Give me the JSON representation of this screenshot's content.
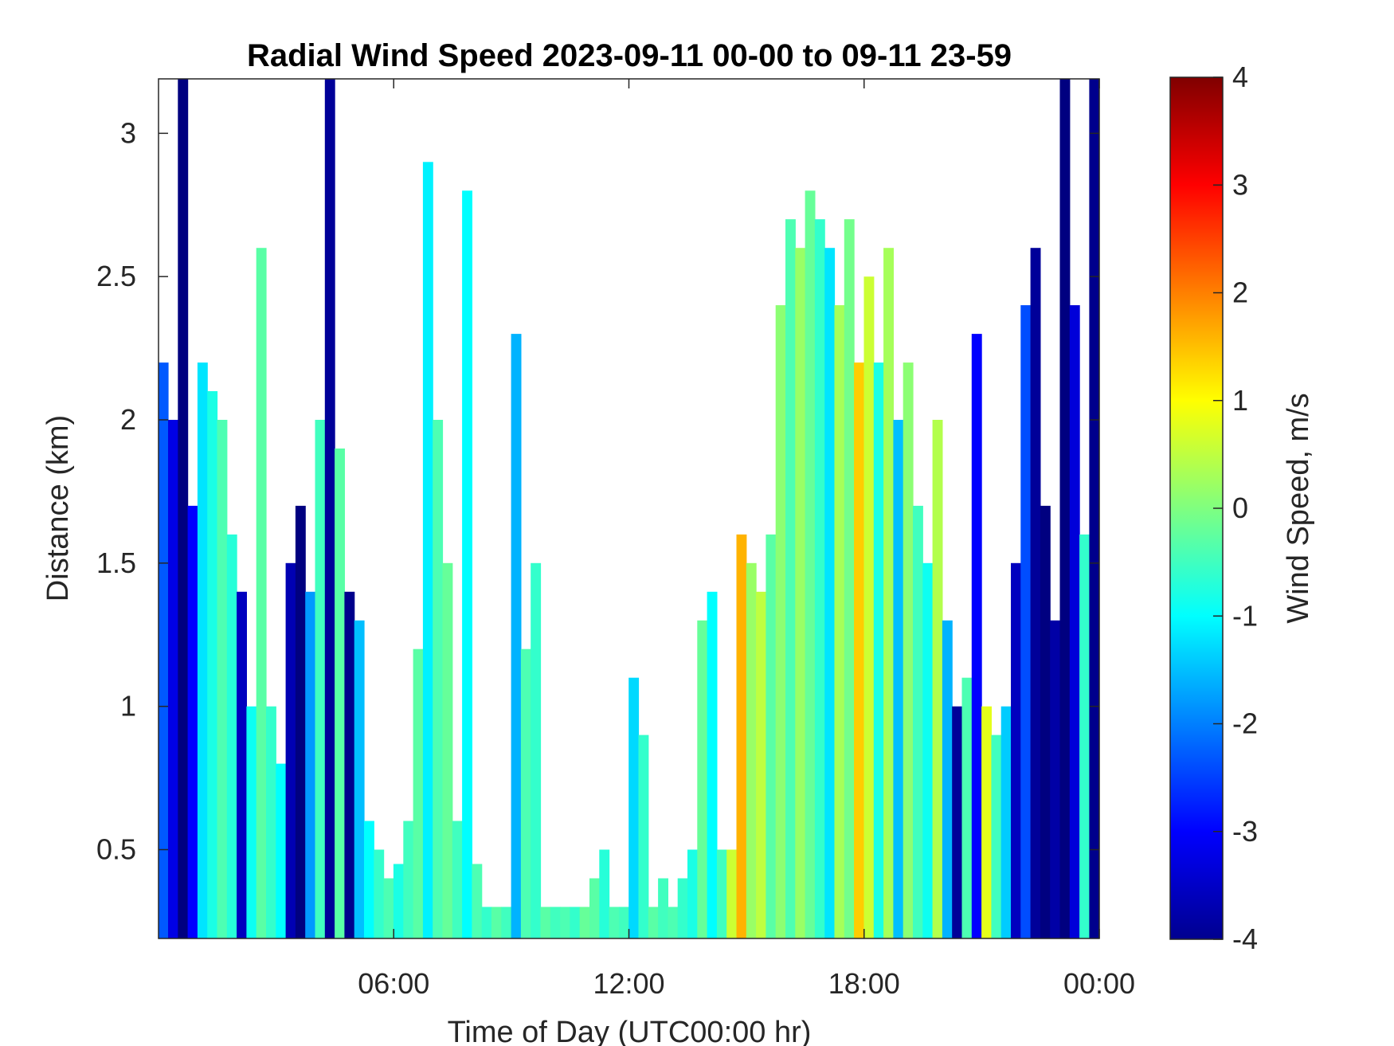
{
  "chart_data": {
    "type": "heatmap",
    "title": "Radial Wind Speed 2023-09-11 00-00 to 09-11 23-59",
    "xlabel": "Time of Day (UTC00:00 hr)",
    "ylabel": "Distance (km)",
    "xlim": [
      0,
      24
    ],
    "ylim": [
      0.19,
      3.19
    ],
    "x_ticks": [
      {
        "value": 6,
        "label": "06:00"
      },
      {
        "value": 12,
        "label": "12:00"
      },
      {
        "value": 18,
        "label": "18:00"
      },
      {
        "value": 24,
        "label": "00:00"
      }
    ],
    "y_ticks": [
      {
        "value": 0.5,
        "label": "0.5"
      },
      {
        "value": 1,
        "label": "1"
      },
      {
        "value": 1.5,
        "label": "1.5"
      },
      {
        "value": 2,
        "label": "2"
      },
      {
        "value": 2.5,
        "label": "2.5"
      },
      {
        "value": 3,
        "label": "3"
      }
    ],
    "grid": false,
    "colorbar": {
      "label": "Wind Speed, m/s",
      "colormap": "jet",
      "min": -4,
      "max": 4,
      "ticks": [
        {
          "value": 4,
          "label": "4"
        },
        {
          "value": 3,
          "label": "3"
        },
        {
          "value": 2,
          "label": "2"
        },
        {
          "value": 1,
          "label": "1"
        },
        {
          "value": 0,
          "label": "0"
        },
        {
          "value": -1,
          "label": "-1"
        },
        {
          "value": -2,
          "label": "-2"
        },
        {
          "value": -3,
          "label": "-3"
        },
        {
          "value": -4,
          "label": "-4"
        }
      ]
    },
    "columns": [
      {
        "t": 0.0,
        "top": 2.2,
        "v": -2.3
      },
      {
        "t": 0.25,
        "top": 2.0,
        "v": -3.2
      },
      {
        "t": 0.5,
        "top": 3.19,
        "v": -4.0
      },
      {
        "t": 0.75,
        "top": 1.7,
        "v": -3.0
      },
      {
        "t": 1.0,
        "top": 2.2,
        "v": -1.2
      },
      {
        "t": 1.25,
        "top": 2.1,
        "v": -0.8
      },
      {
        "t": 1.5,
        "top": 2.0,
        "v": -0.4
      },
      {
        "t": 1.75,
        "top": 1.6,
        "v": -0.7
      },
      {
        "t": 2.0,
        "top": 1.4,
        "v": -3.5
      },
      {
        "t": 2.25,
        "top": 1.0,
        "v": -0.9
      },
      {
        "t": 2.5,
        "top": 2.6,
        "v": -0.3
      },
      {
        "t": 2.75,
        "top": 1.0,
        "v": -0.6
      },
      {
        "t": 3.0,
        "top": 0.8,
        "v": -1.0
      },
      {
        "t": 3.25,
        "top": 1.5,
        "v": -3.6
      },
      {
        "t": 3.5,
        "top": 1.7,
        "v": -4.0
      },
      {
        "t": 3.75,
        "top": 1.4,
        "v": -1.8
      },
      {
        "t": 4.0,
        "top": 2.0,
        "v": -0.5
      },
      {
        "t": 4.25,
        "top": 3.19,
        "v": -3.8
      },
      {
        "t": 4.5,
        "top": 1.9,
        "v": -0.3
      },
      {
        "t": 4.75,
        "top": 1.4,
        "v": -3.9
      },
      {
        "t": 5.0,
        "top": 1.3,
        "v": -1.5
      },
      {
        "t": 5.25,
        "top": 0.6,
        "v": -1.0
      },
      {
        "t": 5.5,
        "top": 0.5,
        "v": -0.6
      },
      {
        "t": 5.75,
        "top": 0.4,
        "v": -0.4
      },
      {
        "t": 6.0,
        "top": 0.45,
        "v": -0.8
      },
      {
        "t": 6.25,
        "top": 0.6,
        "v": -0.5
      },
      {
        "t": 6.5,
        "top": 1.2,
        "v": -0.3
      },
      {
        "t": 6.75,
        "top": 2.9,
        "v": -1.1
      },
      {
        "t": 7.0,
        "top": 2.0,
        "v": -0.4
      },
      {
        "t": 7.25,
        "top": 1.5,
        "v": -0.2
      },
      {
        "t": 7.5,
        "top": 0.6,
        "v": -0.5
      },
      {
        "t": 7.75,
        "top": 2.8,
        "v": -1.0
      },
      {
        "t": 8.0,
        "top": 0.45,
        "v": -0.4
      },
      {
        "t": 8.25,
        "top": 0.3,
        "v": -0.6
      },
      {
        "t": 8.5,
        "top": 0.3,
        "v": -0.3
      },
      {
        "t": 8.75,
        "top": 0.3,
        "v": -0.5
      },
      {
        "t": 9.0,
        "top": 2.3,
        "v": -1.6
      },
      {
        "t": 9.25,
        "top": 1.2,
        "v": -0.4
      },
      {
        "t": 9.5,
        "top": 1.5,
        "v": -0.6
      },
      {
        "t": 9.75,
        "top": 0.3,
        "v": -0.3
      },
      {
        "t": 10.0,
        "top": 0.3,
        "v": -0.5
      },
      {
        "t": 10.25,
        "top": 0.3,
        "v": -0.4
      },
      {
        "t": 10.5,
        "top": 0.3,
        "v": -0.6
      },
      {
        "t": 10.75,
        "top": 0.3,
        "v": -0.2
      },
      {
        "t": 11.0,
        "top": 0.4,
        "v": -0.3
      },
      {
        "t": 11.25,
        "top": 0.5,
        "v": -0.7
      },
      {
        "t": 11.5,
        "top": 0.3,
        "v": -0.4
      },
      {
        "t": 11.75,
        "top": 0.3,
        "v": -0.5
      },
      {
        "t": 12.0,
        "top": 1.1,
        "v": -1.3
      },
      {
        "t": 12.25,
        "top": 0.9,
        "v": -0.6
      },
      {
        "t": 12.5,
        "top": 0.3,
        "v": -0.3
      },
      {
        "t": 12.75,
        "top": 0.4,
        "v": -0.5
      },
      {
        "t": 13.0,
        "top": 0.3,
        "v": -0.4
      },
      {
        "t": 13.25,
        "top": 0.4,
        "v": -0.6
      },
      {
        "t": 13.5,
        "top": 0.5,
        "v": -0.8
      },
      {
        "t": 13.75,
        "top": 1.3,
        "v": -0.2
      },
      {
        "t": 14.0,
        "top": 1.4,
        "v": -1.0
      },
      {
        "t": 14.25,
        "top": 0.5,
        "v": -0.5
      },
      {
        "t": 14.5,
        "top": 0.5,
        "v": 0.6
      },
      {
        "t": 14.75,
        "top": 1.6,
        "v": 1.6
      },
      {
        "t": 15.0,
        "top": 1.5,
        "v": 0.2
      },
      {
        "t": 15.25,
        "top": 1.4,
        "v": 0.5
      },
      {
        "t": 15.5,
        "top": 1.6,
        "v": -0.3
      },
      {
        "t": 15.75,
        "top": 2.4,
        "v": 0.1
      },
      {
        "t": 16.0,
        "top": 2.7,
        "v": -0.4
      },
      {
        "t": 16.25,
        "top": 2.6,
        "v": 0.2
      },
      {
        "t": 16.5,
        "top": 2.8,
        "v": -0.2
      },
      {
        "t": 16.75,
        "top": 2.7,
        "v": -0.6
      },
      {
        "t": 17.0,
        "top": 2.6,
        "v": -1.2
      },
      {
        "t": 17.25,
        "top": 2.4,
        "v": 0.3
      },
      {
        "t": 17.5,
        "top": 2.7,
        "v": -0.1
      },
      {
        "t": 17.75,
        "top": 2.2,
        "v": 1.4
      },
      {
        "t": 18.0,
        "top": 2.5,
        "v": 0.6
      },
      {
        "t": 18.25,
        "top": 2.2,
        "v": -0.8
      },
      {
        "t": 18.5,
        "top": 2.6,
        "v": 0.3
      },
      {
        "t": 18.75,
        "top": 2.0,
        "v": -1.5
      },
      {
        "t": 19.0,
        "top": 2.2,
        "v": 0.1
      },
      {
        "t": 19.25,
        "top": 1.7,
        "v": -0.5
      },
      {
        "t": 19.5,
        "top": 1.5,
        "v": -0.9
      },
      {
        "t": 19.75,
        "top": 2.0,
        "v": 0.4
      },
      {
        "t": 20.0,
        "top": 1.3,
        "v": -1.6
      },
      {
        "t": 20.25,
        "top": 1.0,
        "v": -3.8
      },
      {
        "t": 20.5,
        "top": 1.1,
        "v": -0.4
      },
      {
        "t": 20.75,
        "top": 2.3,
        "v": -3.0
      },
      {
        "t": 21.0,
        "top": 1.0,
        "v": 0.8
      },
      {
        "t": 21.25,
        "top": 0.9,
        "v": -0.5
      },
      {
        "t": 21.5,
        "top": 1.0,
        "v": -1.4
      },
      {
        "t": 21.75,
        "top": 1.5,
        "v": -3.5
      },
      {
        "t": 22.0,
        "top": 2.4,
        "v": -2.4
      },
      {
        "t": 22.25,
        "top": 2.6,
        "v": -3.8
      },
      {
        "t": 22.5,
        "top": 1.7,
        "v": -4.0
      },
      {
        "t": 22.75,
        "top": 1.3,
        "v": -3.7
      },
      {
        "t": 23.0,
        "top": 3.19,
        "v": -4.0
      },
      {
        "t": 23.25,
        "top": 2.4,
        "v": -3.3
      },
      {
        "t": 23.5,
        "top": 1.6,
        "v": -0.6
      },
      {
        "t": 23.75,
        "top": 3.19,
        "v": -3.9
      }
    ]
  }
}
